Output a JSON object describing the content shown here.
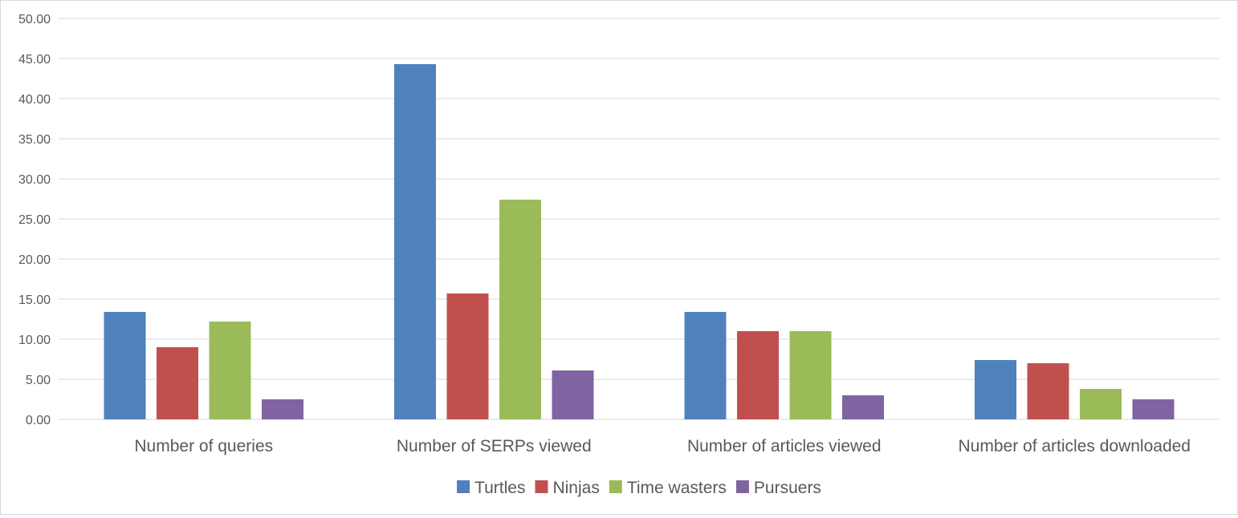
{
  "chart_data": {
    "type": "bar",
    "title": "",
    "xlabel": "",
    "ylabel": "",
    "ylim": [
      0,
      50
    ],
    "ytick_step": 5,
    "ytick_labels": [
      "0.00",
      "5.00",
      "10.00",
      "15.00",
      "20.00",
      "25.00",
      "30.00",
      "35.00",
      "40.00",
      "45.00",
      "50.00"
    ],
    "grid": true,
    "legend_position": "bottom",
    "categories": [
      "Number of queries",
      "Number of SERPs viewed",
      "Number of articles viewed",
      "Number of articles downloaded"
    ],
    "series": [
      {
        "name": "Turtles",
        "color": "#4f81bd",
        "values": [
          13.4,
          44.3,
          13.4,
          7.4
        ]
      },
      {
        "name": "Ninjas",
        "color": "#c0504d",
        "values": [
          9.0,
          15.7,
          11.0,
          7.0
        ]
      },
      {
        "name": "Time wasters",
        "color": "#9bbb59",
        "values": [
          12.2,
          27.4,
          11.0,
          3.8
        ]
      },
      {
        "name": "Pursuers",
        "color": "#8064a2",
        "values": [
          2.5,
          6.1,
          3.0,
          2.5
        ]
      }
    ],
    "gridline_color": "#d9d9d9",
    "text_color": "#595959"
  }
}
